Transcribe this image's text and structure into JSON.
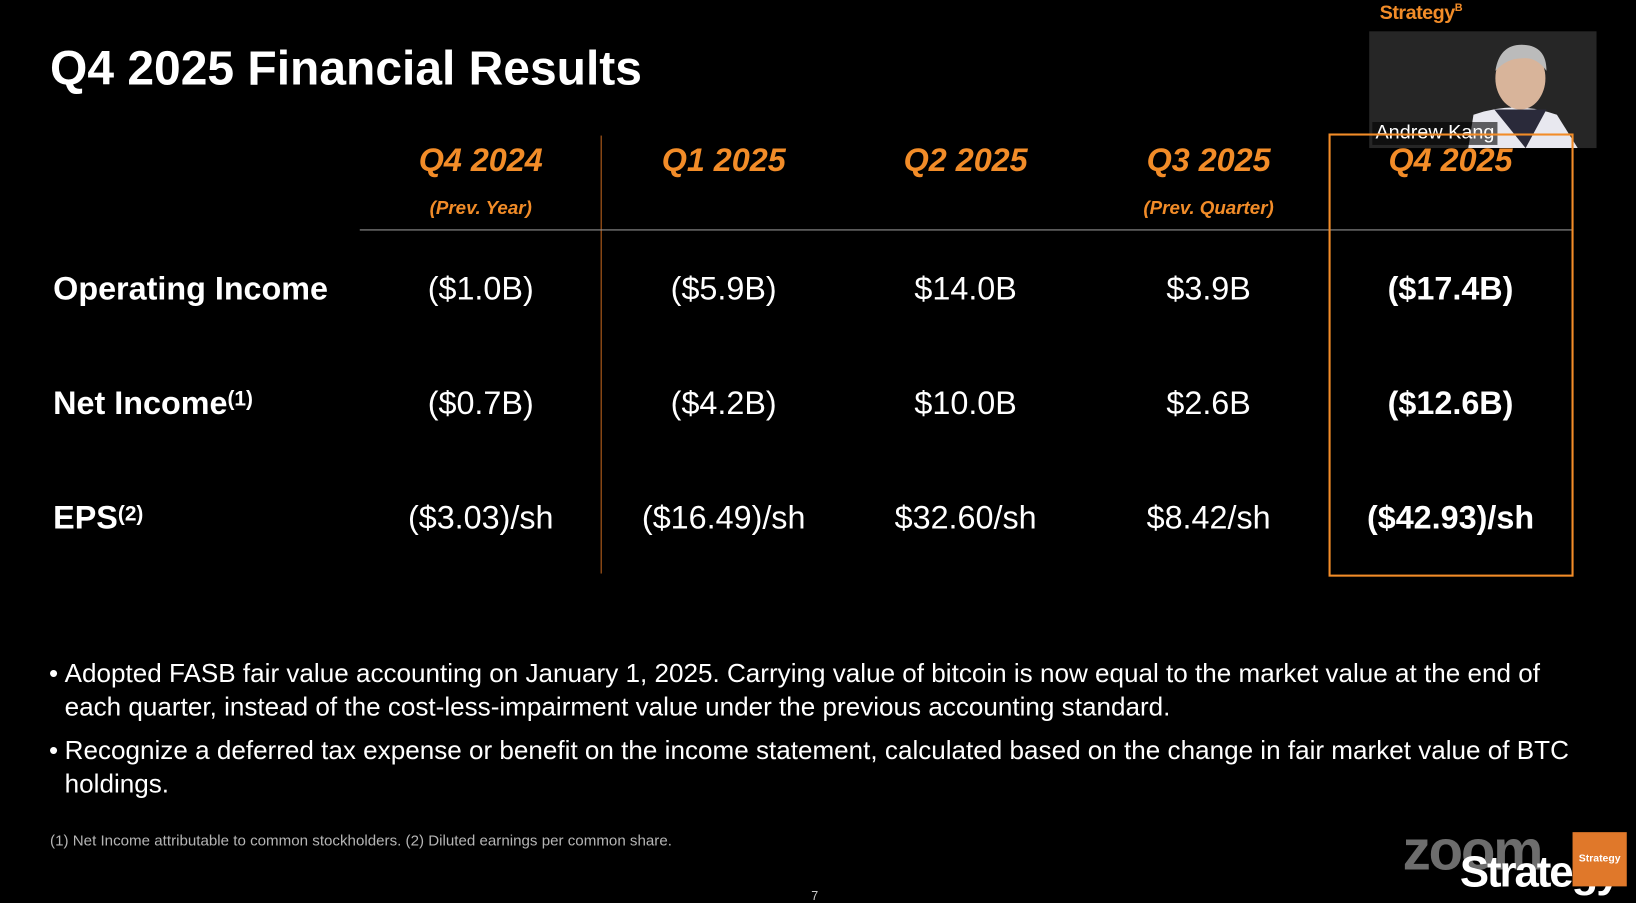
{
  "header": {
    "title": "Q4 2025 Financial Results",
    "brand": "Strategy",
    "brand_sup": "B"
  },
  "speaker": {
    "name": "Andrew Kang"
  },
  "table": {
    "columns": [
      {
        "label": "Q4 2024",
        "note": "(Prev. Year)"
      },
      {
        "label": "Q1 2025"
      },
      {
        "label": "Q2 2025"
      },
      {
        "label": "Q3 2025",
        "note": "(Prev. Quarter)"
      },
      {
        "label": "Q4 2025"
      }
    ],
    "rows": [
      {
        "label": "Operating Income",
        "cells": [
          "($1.0B)",
          "($5.9B)",
          "$14.0B",
          "$3.9B",
          "($17.4B)"
        ]
      },
      {
        "label": "Net Income",
        "ref": "(1)",
        "cells": [
          "($0.7B)",
          "($4.2B)",
          "$10.0B",
          "$2.6B",
          "($12.6B)"
        ]
      },
      {
        "label": "EPS",
        "ref": "(2)",
        "cells": [
          "($3.03)/sh",
          "($16.49)/sh",
          "$32.60/sh",
          "$8.42/sh",
          "($42.93)/sh"
        ]
      }
    ]
  },
  "bullets": [
    "Adopted FASB fair value accounting on January 1, 2025. Carrying value of bitcoin is now equal to the market value at the end of each quarter, instead of the cost-less-impairment value under the previous accounting standard.",
    "Recognize a deferred tax expense or benefit on the income statement, calculated based on the change in fair market value of BTC holdings."
  ],
  "footnote": "(1) Net Income attributable to common stockholders. (2) Diluted earnings per common share.",
  "page_number": "7",
  "watermark": {
    "zoom": "zoom",
    "brand": "Strategy"
  }
}
